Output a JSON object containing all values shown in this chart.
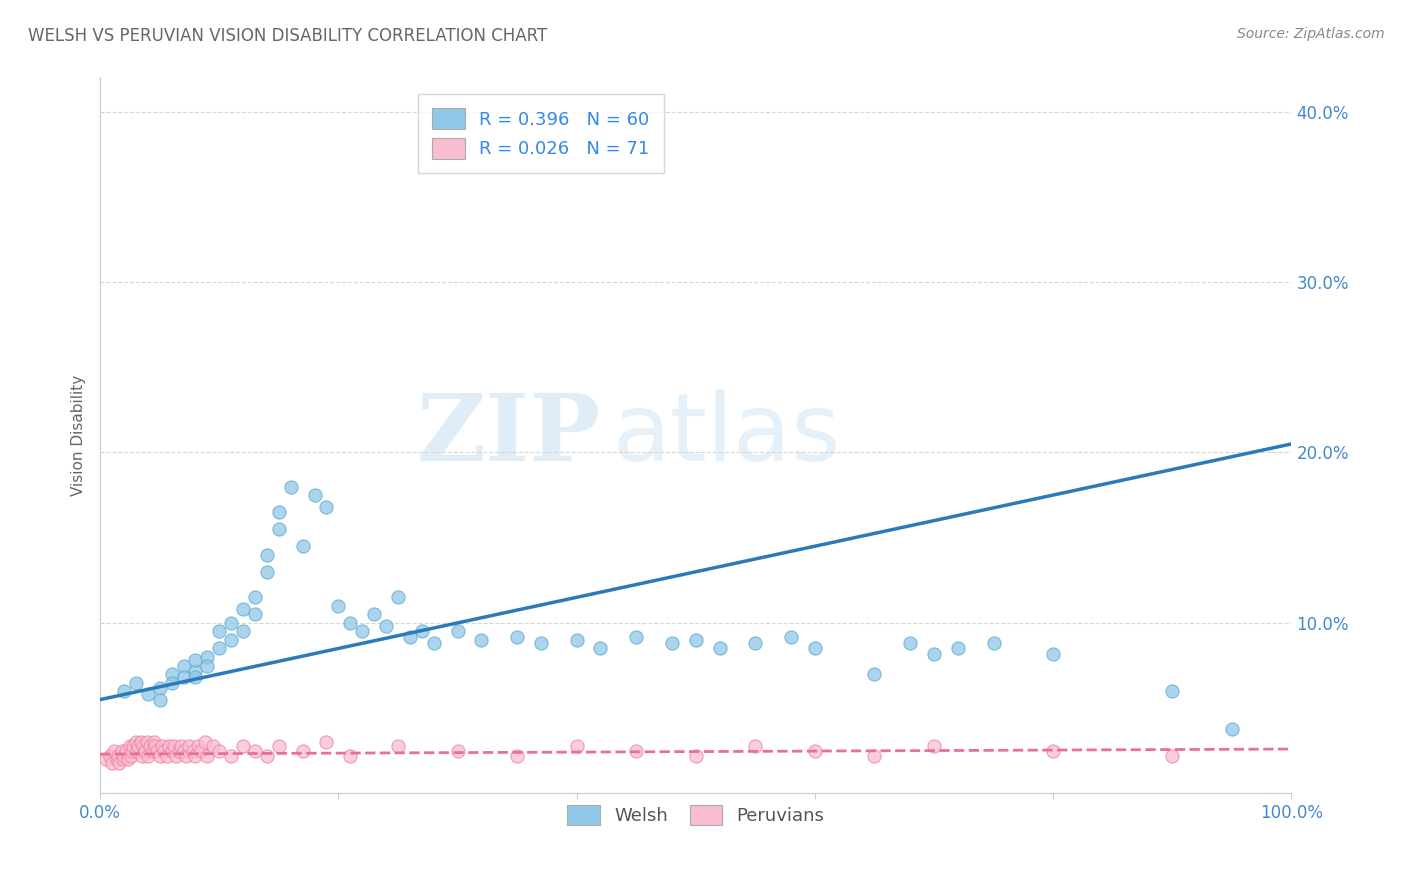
{
  "title": "WELSH VS PERUVIAN VISION DISABILITY CORRELATION CHART",
  "source": "Source: ZipAtlas.com",
  "ylabel": "Vision Disability",
  "xlim": [
    0.0,
    1.0
  ],
  "ylim": [
    0.0,
    0.42
  ],
  "xticks": [
    0.0,
    0.2,
    0.4,
    0.6,
    0.8,
    1.0
  ],
  "xticklabels": [
    "0.0%",
    "",
    "",
    "",
    "",
    "100.0%"
  ],
  "yticks": [
    0.0,
    0.1,
    0.2,
    0.3,
    0.4
  ],
  "yticklabels": [
    "",
    "10.0%",
    "20.0%",
    "30.0%",
    "40.0%"
  ],
  "welsh_color": "#90c8e8",
  "peruvian_color": "#f9bdd0",
  "welsh_edge_color": "#5aaad0",
  "peruvian_edge_color": "#f080a0",
  "welsh_line_color": "#2b7bba",
  "peruvian_line_color": "#e87090",
  "welsh_R": 0.396,
  "welsh_N": 60,
  "peruvian_R": 0.026,
  "peruvian_N": 71,
  "watermark_zip": "ZIP",
  "watermark_atlas": "atlas",
  "background_color": "#ffffff",
  "grid_color": "#cccccc",
  "title_color": "#666666",
  "tick_color": "#4488cc",
  "welsh_x": [
    0.02,
    0.03,
    0.04,
    0.05,
    0.05,
    0.06,
    0.06,
    0.07,
    0.07,
    0.08,
    0.08,
    0.08,
    0.09,
    0.09,
    0.1,
    0.1,
    0.11,
    0.11,
    0.12,
    0.12,
    0.13,
    0.13,
    0.14,
    0.14,
    0.15,
    0.15,
    0.16,
    0.17,
    0.18,
    0.19,
    0.2,
    0.21,
    0.22,
    0.23,
    0.24,
    0.25,
    0.26,
    0.27,
    0.28,
    0.3,
    0.32,
    0.35,
    0.37,
    0.4,
    0.42,
    0.45,
    0.48,
    0.5,
    0.52,
    0.55,
    0.58,
    0.6,
    0.65,
    0.68,
    0.7,
    0.72,
    0.75,
    0.8,
    0.9,
    0.95
  ],
  "welsh_y": [
    0.06,
    0.065,
    0.058,
    0.062,
    0.055,
    0.07,
    0.065,
    0.075,
    0.068,
    0.072,
    0.078,
    0.068,
    0.08,
    0.075,
    0.095,
    0.085,
    0.1,
    0.09,
    0.108,
    0.095,
    0.115,
    0.105,
    0.14,
    0.13,
    0.165,
    0.155,
    0.18,
    0.145,
    0.175,
    0.168,
    0.11,
    0.1,
    0.095,
    0.105,
    0.098,
    0.115,
    0.092,
    0.095,
    0.088,
    0.095,
    0.09,
    0.092,
    0.088,
    0.09,
    0.085,
    0.092,
    0.088,
    0.09,
    0.085,
    0.088,
    0.092,
    0.085,
    0.07,
    0.088,
    0.082,
    0.085,
    0.088,
    0.082,
    0.06,
    0.038
  ],
  "peruvian_x": [
    0.005,
    0.008,
    0.01,
    0.012,
    0.014,
    0.015,
    0.016,
    0.018,
    0.019,
    0.02,
    0.022,
    0.023,
    0.025,
    0.026,
    0.027,
    0.028,
    0.03,
    0.031,
    0.032,
    0.034,
    0.035,
    0.036,
    0.038,
    0.039,
    0.04,
    0.042,
    0.044,
    0.045,
    0.046,
    0.048,
    0.05,
    0.052,
    0.054,
    0.056,
    0.058,
    0.06,
    0.062,
    0.064,
    0.066,
    0.068,
    0.07,
    0.072,
    0.075,
    0.078,
    0.08,
    0.082,
    0.085,
    0.088,
    0.09,
    0.095,
    0.1,
    0.11,
    0.12,
    0.13,
    0.14,
    0.15,
    0.17,
    0.19,
    0.21,
    0.25,
    0.3,
    0.35,
    0.4,
    0.45,
    0.5,
    0.55,
    0.6,
    0.65,
    0.7,
    0.8,
    0.9
  ],
  "peruvian_y": [
    0.02,
    0.022,
    0.018,
    0.025,
    0.02,
    0.022,
    0.018,
    0.025,
    0.02,
    0.022,
    0.025,
    0.02,
    0.028,
    0.022,
    0.025,
    0.028,
    0.03,
    0.025,
    0.028,
    0.03,
    0.022,
    0.028,
    0.025,
    0.03,
    0.022,
    0.028,
    0.025,
    0.03,
    0.028,
    0.025,
    0.022,
    0.028,
    0.025,
    0.022,
    0.028,
    0.025,
    0.028,
    0.022,
    0.025,
    0.028,
    0.025,
    0.022,
    0.028,
    0.025,
    0.022,
    0.028,
    0.025,
    0.03,
    0.022,
    0.028,
    0.025,
    0.022,
    0.028,
    0.025,
    0.022,
    0.028,
    0.025,
    0.03,
    0.022,
    0.028,
    0.025,
    0.022,
    0.028,
    0.025,
    0.022,
    0.028,
    0.025,
    0.022,
    0.028,
    0.025,
    0.022
  ],
  "welsh_line_x": [
    0.0,
    1.0
  ],
  "welsh_line_y": [
    0.055,
    0.205
  ],
  "peruvian_line_x": [
    0.0,
    1.0
  ],
  "peruvian_line_y": [
    0.023,
    0.026
  ]
}
